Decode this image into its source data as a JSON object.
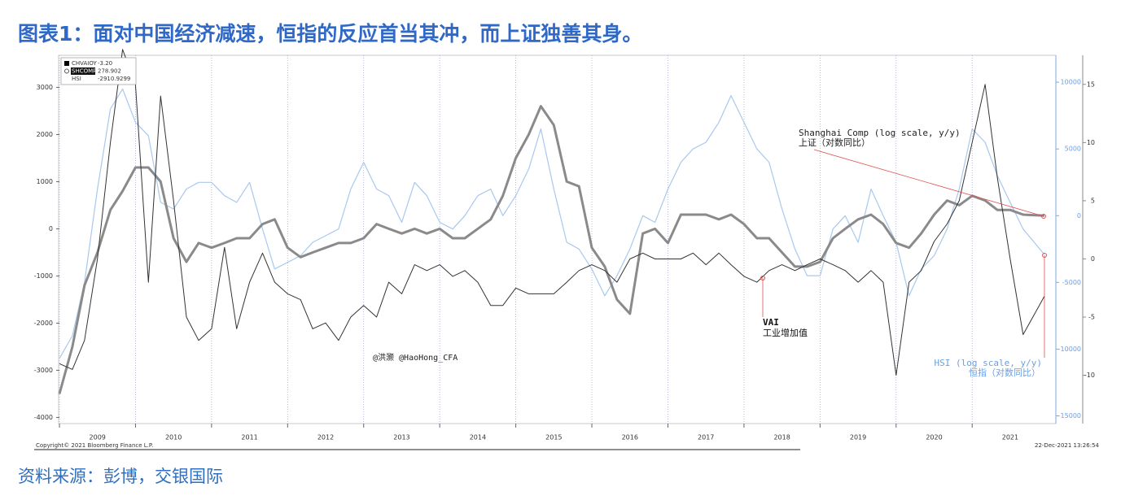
{
  "title": "图表1：面对中国经济减速，恒指的反应首当其冲，而上证独善其身。",
  "source": "资料来源：彭博，交银国际",
  "chart_data": {
    "type": "line",
    "x": [
      2009.0,
      2009.17,
      2009.33,
      2009.5,
      2009.67,
      2009.83,
      2010.0,
      2010.17,
      2010.33,
      2010.5,
      2010.67,
      2010.83,
      2011.0,
      2011.17,
      2011.33,
      2011.5,
      2011.67,
      2011.83,
      2012.0,
      2012.17,
      2012.33,
      2012.5,
      2012.67,
      2012.83,
      2013.0,
      2013.17,
      2013.33,
      2013.5,
      2013.67,
      2013.83,
      2014.0,
      2014.17,
      2014.33,
      2014.5,
      2014.67,
      2014.83,
      2015.0,
      2015.17,
      2015.33,
      2015.5,
      2015.67,
      2015.83,
      2016.0,
      2016.17,
      2016.33,
      2016.5,
      2016.67,
      2016.83,
      2017.0,
      2017.17,
      2017.33,
      2017.5,
      2017.67,
      2017.83,
      2018.0,
      2018.17,
      2018.33,
      2018.5,
      2018.67,
      2018.83,
      2019.0,
      2019.17,
      2019.33,
      2019.5,
      2019.67,
      2019.83,
      2020.0,
      2020.17,
      2020.33,
      2020.5,
      2020.67,
      2020.83,
      2021.0,
      2021.17,
      2021.33,
      2021.5,
      2021.67,
      2021.95
    ],
    "xlim": [
      2009,
      2022.1
    ],
    "xticks": [
      2009,
      2010,
      2011,
      2012,
      2013,
      2014,
      2015,
      2016,
      2017,
      2018,
      2019,
      2020,
      2021
    ],
    "grid": true,
    "ylim": [
      -4130,
      3680
    ],
    "yticks": [
      -4000,
      -3000,
      -2000,
      -1000,
      0,
      1000,
      2000,
      3000
    ],
    "y2lim": [
      -15580,
      12020
    ],
    "y2ticks": [
      -15000,
      -10000,
      -5000,
      0,
      5000,
      10000
    ],
    "y3lim": [
      -14.15,
      17.5
    ],
    "y3ticks": [
      -10,
      -5,
      0,
      5,
      10,
      15
    ],
    "legend": "upper left",
    "series": [
      {
        "name": "CHVAIOY",
        "last_label": "-3.20",
        "color": "#333333",
        "axis": "y3",
        "values": [
          -9,
          -9.5,
          -7,
          0,
          10,
          18,
          15,
          -2,
          14,
          5,
          -5,
          -7,
          -6,
          1,
          -6,
          -2,
          0.5,
          -2,
          -3,
          -3.5,
          -6,
          -5.5,
          -7,
          -5,
          -4,
          -5,
          -2,
          -3,
          -0.5,
          -1,
          -0.5,
          -1.5,
          -1,
          -2,
          -4,
          -4,
          -2.5,
          -3,
          -3,
          -3,
          -2,
          -1,
          -0.5,
          -1,
          -2,
          0,
          0.5,
          0,
          0,
          0,
          0.5,
          -0.5,
          0.5,
          -0.5,
          -1.5,
          -2,
          -1,
          -0.5,
          -1,
          -0.5,
          0,
          -0.5,
          -1,
          -2,
          -1,
          -2,
          -10,
          -2,
          -1,
          1.5,
          3,
          5,
          10,
          15,
          7,
          0,
          -6.5,
          -3.2
        ]
      },
      {
        "name": "SHCOMP",
        "last_label": "278.902",
        "color": "#8a8a8a",
        "axis": "y",
        "values": [
          -3500,
          -2500,
          -1200,
          -500,
          400,
          800,
          1300,
          1300,
          1000,
          -200,
          -700,
          -300,
          -400,
          -300,
          -200,
          -200,
          100,
          200,
          -400,
          -600,
          -500,
          -400,
          -300,
          -300,
          -200,
          100,
          0,
          -100,
          0,
          -100,
          0,
          -200,
          -200,
          0,
          200,
          700,
          1500,
          2000,
          2600,
          2200,
          1000,
          900,
          -400,
          -800,
          -1500,
          -1800,
          -100,
          0,
          -300,
          300,
          300,
          300,
          200,
          300,
          100,
          -200,
          -200,
          -500,
          -800,
          -800,
          -700,
          -200,
          0,
          200,
          300,
          100,
          -300,
          -400,
          -100,
          300,
          600,
          500,
          700,
          600,
          400,
          400,
          300,
          278.902
        ]
      },
      {
        "name": "HSI",
        "last_label": "-2910.9299",
        "color": "#a9c8ee",
        "axis": "y2",
        "values": [
          -10700,
          -9000,
          -5000,
          2000,
          8000,
          9500,
          7000,
          6000,
          1000,
          500,
          2000,
          2500,
          2500,
          1500,
          1000,
          2500,
          -1000,
          -4000,
          -3500,
          -3000,
          -2000,
          -1500,
          -1000,
          2000,
          4000,
          2000,
          1500,
          -500,
          2500,
          1500,
          -500,
          -1000,
          0,
          1500,
          2000,
          0,
          1500,
          3500,
          6500,
          2000,
          -2000,
          -2500,
          -4000,
          -6000,
          -4500,
          -2500,
          0,
          -500,
          2000,
          4000,
          5000,
          5500,
          7000,
          9000,
          7000,
          5000,
          4000,
          500,
          -2500,
          -4500,
          -4500,
          -1000,
          0,
          -2000,
          2000,
          0,
          -2000,
          -6000,
          -4000,
          -3000,
          -1000,
          2000,
          6500,
          5500,
          3000,
          1000,
          -1000,
          -2910.9299
        ]
      }
    ],
    "annotations": [
      "Shanghai Comp (log scale, y/y)",
      "上证（对数同比）",
      "VAI",
      "工业增加值",
      "HSI (log scale, y/y)",
      "恒指（对数同比）",
      "@洪灏 @HaoHong_CFA"
    ],
    "copyright": "Copyright© 2021 Bloomberg Finance L.P.",
    "timestamp": "22-Dec-2021 13:26:54"
  }
}
